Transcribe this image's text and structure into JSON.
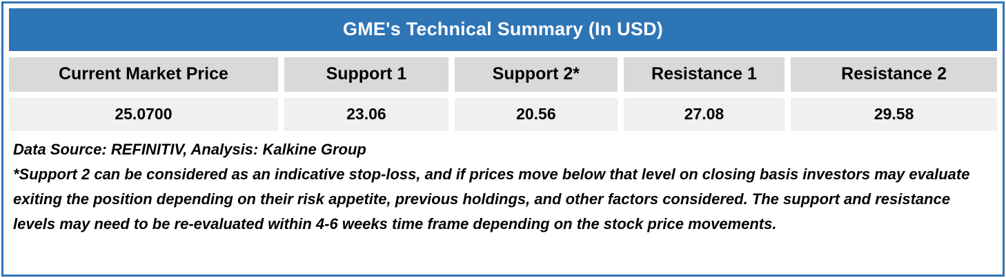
{
  "title": "GME's Technical Summary (In USD)",
  "colors": {
    "border_blue": "#2E75B6",
    "title_bar_bg": "#2E75B6",
    "title_text": "#FFFFFF",
    "header_cell_bg": "#D9D9D9",
    "value_cell_bg": "#F0F0F0",
    "body_text": "#000000"
  },
  "chart_data": {
    "type": "table",
    "title": "GME's Technical Summary (In USD)",
    "columns": [
      "Current Market Price",
      "Support 1",
      "Support 2*",
      "Resistance 1",
      "Resistance 2"
    ],
    "rows": [
      [
        "25.0700",
        "23.06",
        "20.56",
        "27.08",
        "29.58"
      ]
    ]
  },
  "table": {
    "columns": [
      {
        "header": "Current Market Price",
        "value": "25.0700"
      },
      {
        "header": "Support 1",
        "value": "23.06"
      },
      {
        "header": "Support 2*",
        "value": "20.56"
      },
      {
        "header": "Resistance 1",
        "value": "27.08"
      },
      {
        "header": "Resistance 2",
        "value": "29.58"
      }
    ]
  },
  "footer": {
    "source_line": "Data Source: REFINITIV, Analysis: Kalkine Group",
    "note": "*Support 2 can be considered as an indicative stop-loss, and if prices move below that level on closing basis investors may evaluate exiting the position depending on their risk appetite, previous holdings, and other factors considered. The support and resistance levels may need to be re-evaluated within 4-6 weeks time frame depending on the stock price movements."
  }
}
